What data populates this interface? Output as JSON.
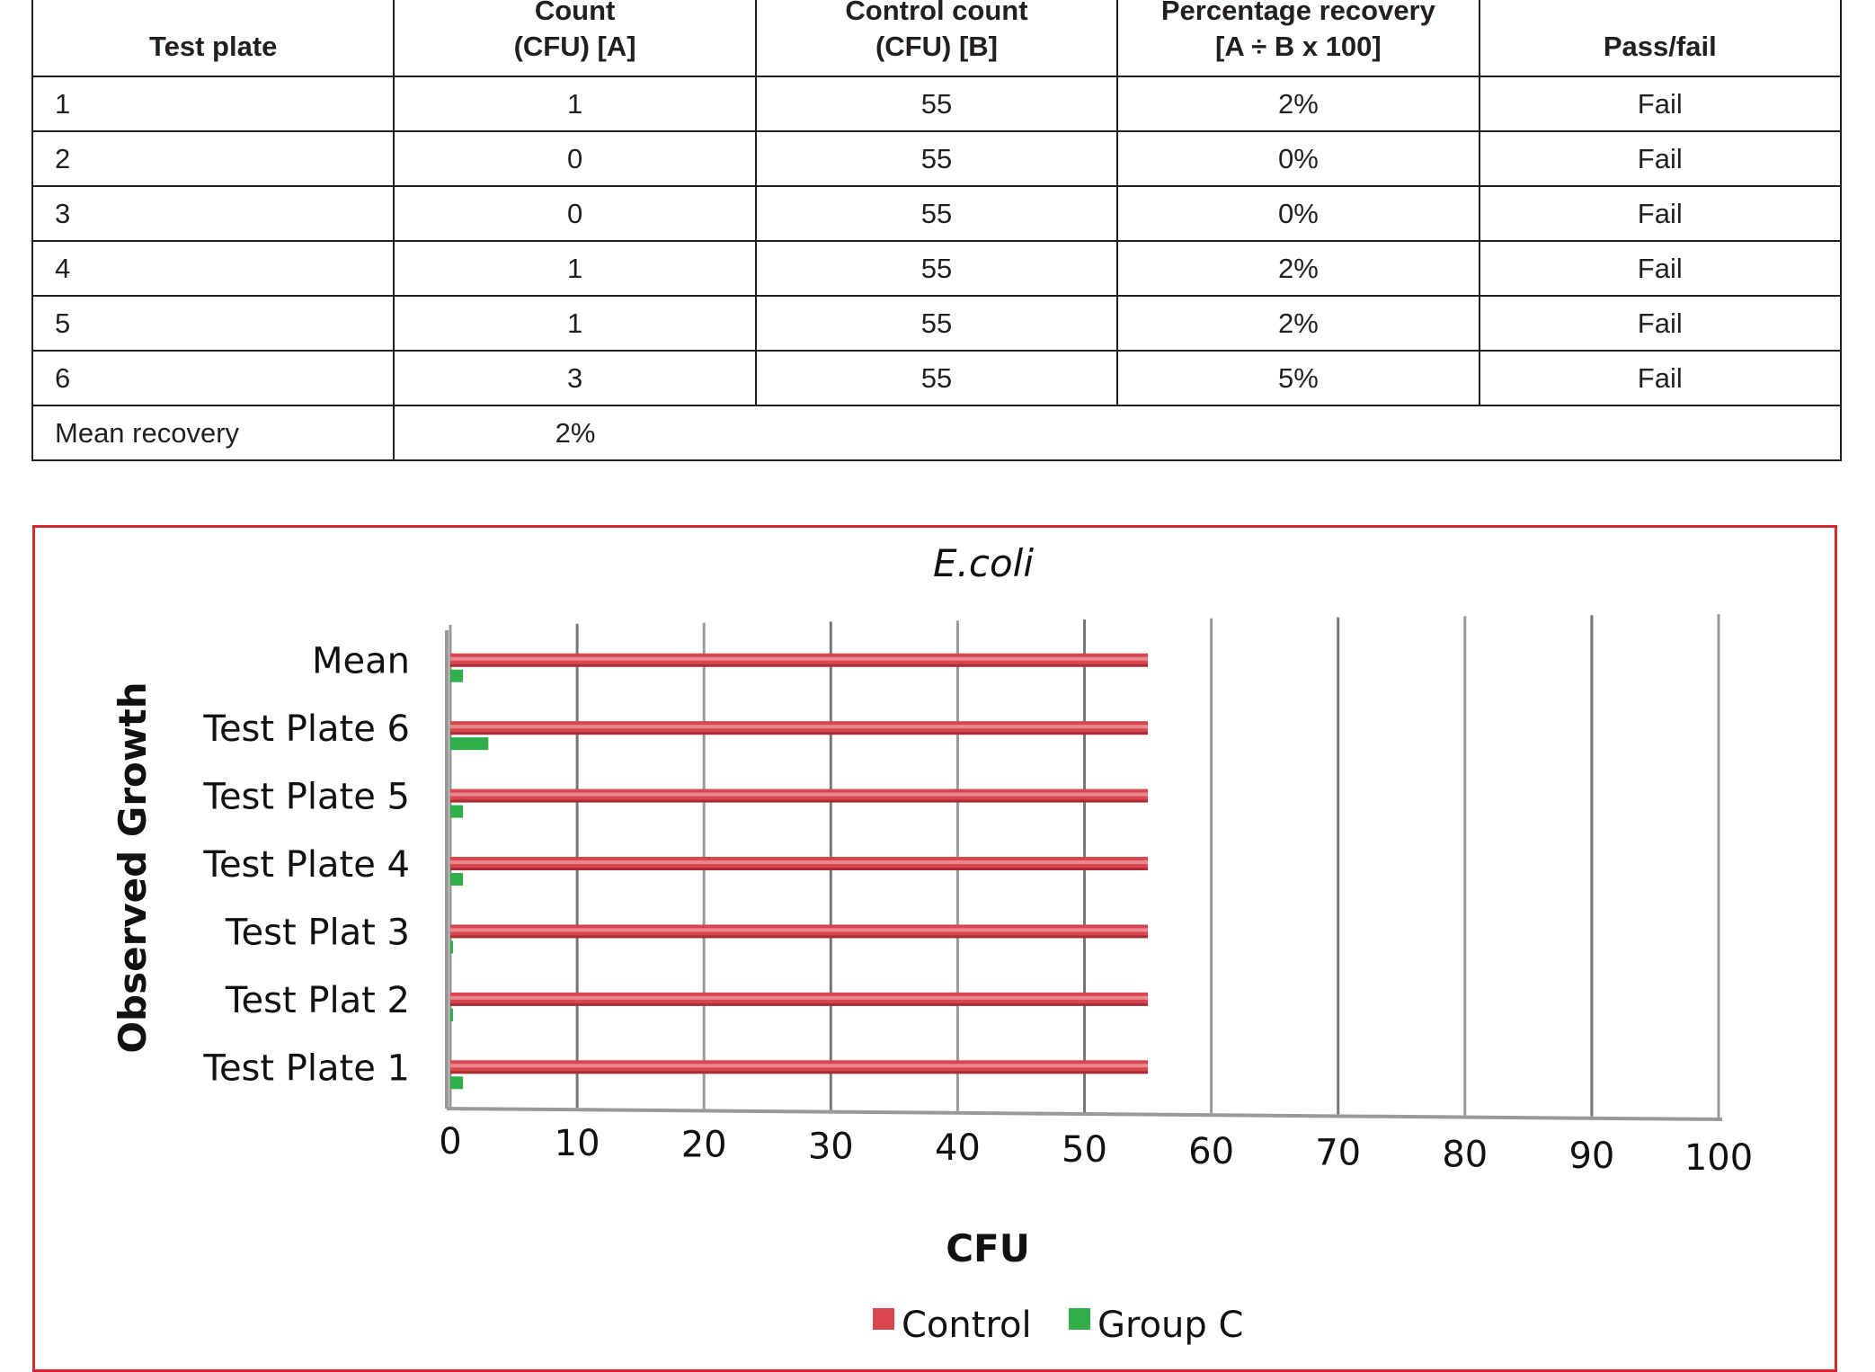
{
  "table": {
    "headers": [
      "Test plate",
      "Count\n(CFU) [A]",
      "Control count\n(CFU) [B]",
      "Percentage recovery\n[A ÷ B x 100]",
      "Pass/fail"
    ],
    "rows": [
      [
        "1",
        "1",
        "55",
        "2%",
        "Fail"
      ],
      [
        "2",
        "0",
        "55",
        "0%",
        "Fail"
      ],
      [
        "3",
        "0",
        "55",
        "0%",
        "Fail"
      ],
      [
        "4",
        "1",
        "55",
        "2%",
        "Fail"
      ],
      [
        "5",
        "1",
        "55",
        "2%",
        "Fail"
      ],
      [
        "6",
        "3",
        "55",
        "5%",
        "Fail"
      ]
    ],
    "mean_label": "Mean recovery",
    "mean_value": "2%"
  },
  "chart_data": {
    "type": "bar",
    "orientation": "horizontal",
    "title": "E.coli",
    "xlabel": "CFU",
    "ylabel": "Observed Growth",
    "categories": [
      "Test Plate 1",
      "Test Plat 2",
      "Test Plat 3",
      "Test Plate 4",
      "Test Plate 5",
      "Test Plate 6",
      "Mean"
    ],
    "series": [
      {
        "name": "Control",
        "values": [
          55,
          55,
          55,
          55,
          55,
          55,
          55
        ],
        "color": "#d9464f"
      },
      {
        "name": "Group C",
        "values": [
          1,
          0,
          0,
          1,
          1,
          3,
          1
        ],
        "color": "#2fae4a"
      }
    ],
    "xlim": [
      0,
      100
    ],
    "xticks": [
      "0",
      "10",
      "20",
      "30",
      "40",
      "50",
      "60",
      "70",
      "80",
      "90",
      "100"
    ],
    "grid": true,
    "legend": "bottom",
    "border_color": "#d7282f"
  }
}
